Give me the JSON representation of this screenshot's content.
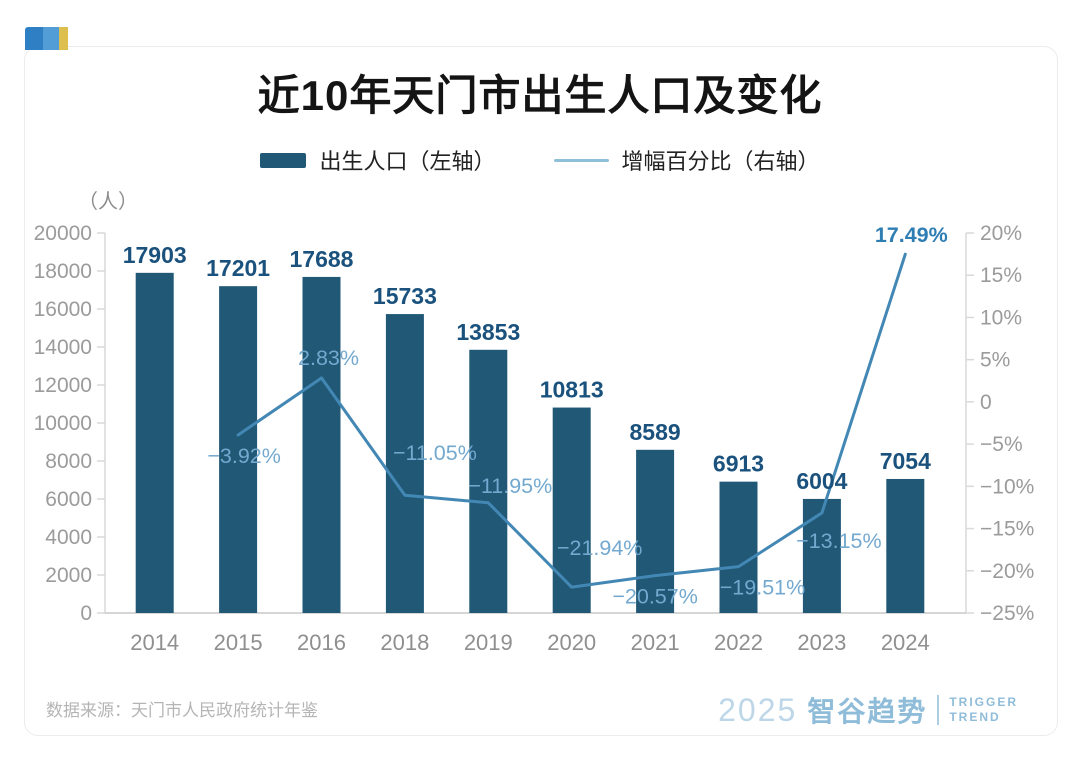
{
  "title": "近10年天门市出生人口及变化",
  "legend": {
    "bars": {
      "label": "出生人口（左轴）",
      "color": "#205876"
    },
    "line": {
      "label": "增幅百分比（右轴）",
      "color": "#8fc0da"
    }
  },
  "chart_data": {
    "type": "bar+line combo",
    "title": "近10年天门市出生人口及变化",
    "categories": [
      "2014",
      "2015",
      "2016",
      "2018",
      "2019",
      "2020",
      "2021",
      "2022",
      "2023",
      "2024"
    ],
    "series": [
      {
        "name": "出生人口（左轴）",
        "type": "bar",
        "axis": "left",
        "color": "#205876",
        "value_label_color": "#1a527d",
        "values": [
          17903,
          17201,
          17688,
          15733,
          13853,
          10813,
          8589,
          6913,
          6004,
          7054
        ]
      },
      {
        "name": "增幅百分比（右轴）",
        "type": "line",
        "axis": "right",
        "color": "#4387b4",
        "label_color": "#74a9cf",
        "final_label_color": "#2e7db3",
        "values": [
          null,
          -3.92,
          2.83,
          -11.05,
          -11.95,
          -21.94,
          -20.57,
          -19.51,
          -13.15,
          17.49
        ],
        "point_labels": [
          "−3.92%",
          "2.83%",
          "−11.05%",
          "−11.95%",
          "−21.94%",
          "−20.57%",
          "−19.51%",
          "−13.15%",
          "17.49%"
        ]
      }
    ],
    "left_axis": {
      "unit": "（人）",
      "min": 0,
      "max": 20000,
      "ticks": [
        "20000",
        "18000",
        "16000",
        "14000",
        "12000",
        "10000",
        "8000",
        "6000",
        "4000",
        "2000",
        "0"
      ]
    },
    "right_axis": {
      "min": -25,
      "max": 20,
      "ticks": [
        "20%",
        "15%",
        "10%",
        "5%",
        "0",
        "−5%",
        "−10%",
        "−15%",
        "−20%",
        "−25%"
      ]
    },
    "grid": "off",
    "legend_position": "top-center",
    "tick_color": "#9b9b9b",
    "axis_line_color": "#d9d9d9"
  },
  "footer": {
    "source": "数据来源：天门市人民政府统计年鉴",
    "brand_year": "2025",
    "brand_name": "智谷趋势",
    "brand_en_line1": "TRIGGER",
    "brand_en_line2": "TREND"
  }
}
